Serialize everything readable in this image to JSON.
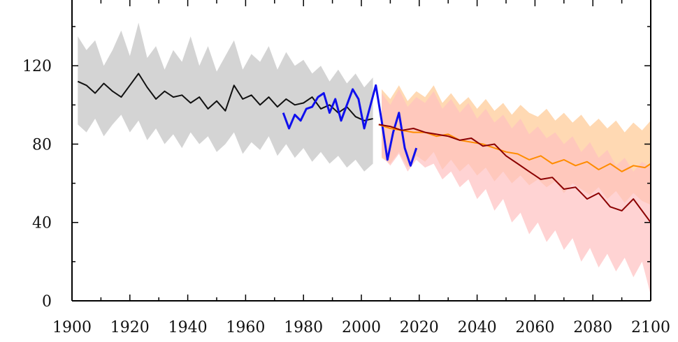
{
  "chart_data": {
    "type": "line",
    "title": "",
    "xlabel": "",
    "ylabel": "",
    "xlim": [
      1900,
      2100
    ],
    "ylim": [
      0,
      150
    ],
    "x_ticks": [
      1900,
      1920,
      1940,
      1960,
      1980,
      2000,
      2020,
      2040,
      2060,
      2080,
      2100
    ],
    "y_ticks": [
      0,
      40,
      80,
      120
    ],
    "grid": false,
    "legend": "none",
    "colors": {
      "historical_line": "#111111",
      "historical_band": "#d4d4d4",
      "observed_line": "#1010ee",
      "scenario_low_line": "#ff8c00",
      "scenario_low_band": "#ffcc99",
      "scenario_high_line": "#8b0000",
      "scenario_high_band": "#ffc0c0"
    },
    "series": [
      {
        "role": "historical_band",
        "x": [
          1902,
          1905,
          1908,
          1911,
          1914,
          1917,
          1920,
          1923,
          1926,
          1929,
          1932,
          1935,
          1938,
          1941,
          1944,
          1947,
          1950,
          1953,
          1956,
          1959,
          1962,
          1965,
          1968,
          1971,
          1974,
          1977,
          1980,
          1983,
          1986,
          1989,
          1992,
          1995,
          1998,
          2001,
          2004
        ],
        "upper": [
          135,
          128,
          133,
          120,
          128,
          138,
          125,
          142,
          124,
          130,
          118,
          128,
          122,
          135,
          120,
          130,
          117,
          125,
          133,
          118,
          126,
          122,
          130,
          118,
          127,
          120,
          123,
          116,
          120,
          112,
          118,
          111,
          116,
          109,
          114
        ],
        "lower": [
          90,
          86,
          93,
          84,
          90,
          95,
          86,
          92,
          82,
          88,
          80,
          85,
          78,
          86,
          80,
          84,
          76,
          80,
          86,
          75,
          81,
          77,
          84,
          74,
          80,
          73,
          78,
          71,
          76,
          70,
          74,
          68,
          72,
          66,
          70
        ]
      },
      {
        "role": "scenario_low_band",
        "x": [
          2007,
          2010,
          2013,
          2016,
          2019,
          2022,
          2025,
          2028,
          2031,
          2034,
          2037,
          2040,
          2043,
          2046,
          2049,
          2052,
          2055,
          2058,
          2061,
          2064,
          2067,
          2070,
          2073,
          2076,
          2079,
          2082,
          2085,
          2088,
          2091,
          2094,
          2097,
          2100
        ],
        "upper": [
          108,
          103,
          110,
          102,
          107,
          104,
          110,
          101,
          106,
          100,
          104,
          98,
          103,
          97,
          101,
          95,
          100,
          96,
          94,
          98,
          92,
          96,
          91,
          95,
          89,
          93,
          88,
          92,
          86,
          91,
          87,
          92
        ],
        "lower": [
          73,
          70,
          76,
          68,
          74,
          71,
          76,
          67,
          72,
          66,
          70,
          64,
          68,
          61,
          66,
          60,
          64,
          59,
          62,
          58,
          61,
          55,
          60,
          57,
          54,
          58,
          52,
          56,
          50,
          55,
          51,
          49
        ]
      },
      {
        "role": "scenario_high_band",
        "x": [
          2007,
          2010,
          2013,
          2016,
          2019,
          2022,
          2025,
          2028,
          2031,
          2034,
          2037,
          2040,
          2043,
          2046,
          2049,
          2052,
          2055,
          2058,
          2061,
          2064,
          2067,
          2070,
          2073,
          2076,
          2079,
          2082,
          2085,
          2088,
          2091,
          2094,
          2097,
          2100
        ],
        "upper": [
          106,
          100,
          108,
          99,
          104,
          101,
          107,
          98,
          103,
          96,
          101,
          93,
          98,
          91,
          95,
          88,
          93,
          85,
          89,
          83,
          86,
          80,
          84,
          76,
          81,
          73,
          77,
          69,
          73,
          66,
          71,
          68
        ],
        "lower": [
          74,
          69,
          75,
          66,
          72,
          68,
          70,
          62,
          66,
          58,
          62,
          52,
          57,
          46,
          52,
          40,
          45,
          34,
          40,
          30,
          36,
          26,
          32,
          20,
          27,
          17,
          24,
          15,
          22,
          12,
          20,
          3
        ]
      },
      {
        "role": "historical_line",
        "x": [
          1902,
          1905,
          1908,
          1911,
          1914,
          1917,
          1920,
          1923,
          1926,
          1929,
          1932,
          1935,
          1938,
          1941,
          1944,
          1947,
          1950,
          1953,
          1956,
          1959,
          1962,
          1965,
          1968,
          1971,
          1974,
          1977,
          1980,
          1983,
          1986,
          1989,
          1992,
          1995,
          1998,
          2001,
          2004
        ],
        "values": [
          112,
          110,
          106,
          111,
          107,
          104,
          110,
          116,
          109,
          103,
          107,
          104,
          105,
          101,
          104,
          98,
          102,
          97,
          110,
          103,
          105,
          100,
          104,
          99,
          103,
          100,
          101,
          104,
          98,
          100,
          96,
          99,
          94,
          92,
          93
        ]
      },
      {
        "role": "observed_line",
        "x": [
          1973,
          1975,
          1977,
          1979,
          1981,
          1983,
          1985,
          1987,
          1989,
          1991,
          1993,
          1995,
          1997,
          1999,
          2001,
          2003,
          2005,
          2007,
          2009,
          2011,
          2013,
          2015,
          2017,
          2019
        ],
        "values": [
          96,
          88,
          95,
          92,
          98,
          99,
          104,
          106,
          96,
          103,
          92,
          100,
          108,
          103,
          88,
          99,
          110,
          92,
          72,
          86,
          96,
          78,
          69,
          78
        ]
      },
      {
        "role": "scenario_low_line",
        "x": [
          2006,
          2010,
          2014,
          2018,
          2022,
          2026,
          2030,
          2034,
          2038,
          2042,
          2046,
          2050,
          2054,
          2058,
          2062,
          2066,
          2070,
          2074,
          2078,
          2082,
          2086,
          2090,
          2094,
          2098,
          2100
        ],
        "values": [
          90,
          88,
          87,
          86,
          86,
          84,
          85,
          82,
          81,
          80,
          78,
          76,
          75,
          72,
          74,
          70,
          72,
          69,
          71,
          67,
          70,
          66,
          69,
          68,
          70
        ]
      },
      {
        "role": "scenario_high_line",
        "x": [
          2006,
          2010,
          2014,
          2018,
          2022,
          2026,
          2030,
          2034,
          2038,
          2042,
          2046,
          2050,
          2054,
          2058,
          2062,
          2066,
          2070,
          2074,
          2078,
          2082,
          2086,
          2090,
          2094,
          2098,
          2100
        ],
        "values": [
          90,
          89,
          87,
          88,
          86,
          85,
          84,
          82,
          83,
          79,
          80,
          74,
          70,
          66,
          62,
          63,
          57,
          58,
          52,
          55,
          48,
          46,
          52,
          44,
          40
        ]
      }
    ]
  }
}
